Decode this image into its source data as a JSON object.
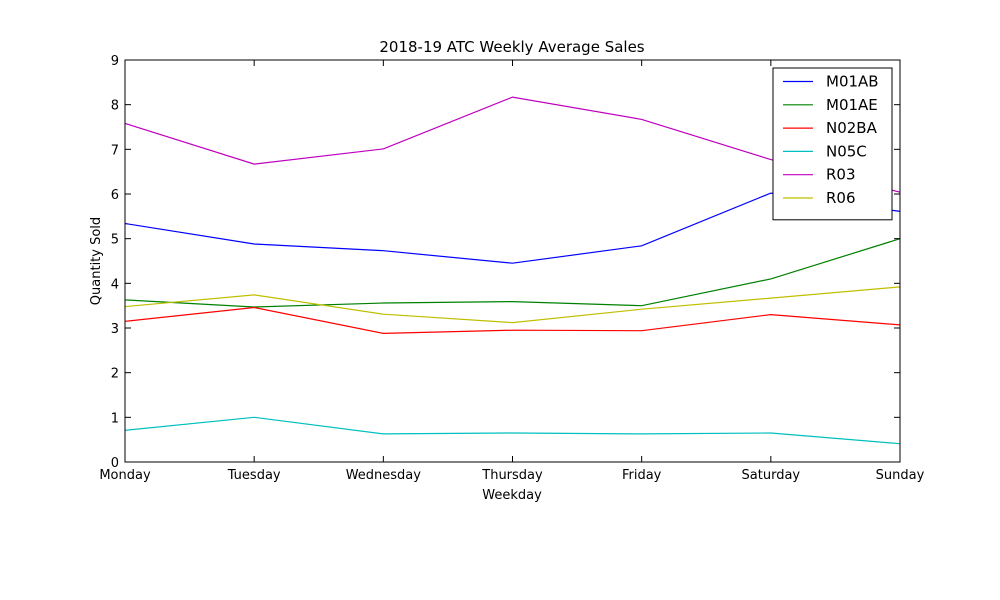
{
  "chart_data": {
    "type": "line",
    "title": "2018-19 ATC Weekly Average Sales",
    "xlabel": "Weekday",
    "ylabel": "Quantity Sold",
    "categories": [
      "Monday",
      "Tuesday",
      "Wednesday",
      "Thursday",
      "Friday",
      "Saturday",
      "Sunday"
    ],
    "ylim": [
      0,
      9
    ],
    "yticks": [
      "0",
      "1",
      "2",
      "3",
      "4",
      "5",
      "6",
      "7",
      "8",
      "9"
    ],
    "grid": false,
    "legend_position": "top-right",
    "series": [
      {
        "name": "M01AB",
        "color": "#0000ff",
        "values": [
          5.34,
          4.88,
          4.73,
          4.45,
          4.84,
          6.02,
          5.61
        ]
      },
      {
        "name": "M01AE",
        "color": "#008000",
        "values": [
          3.63,
          3.47,
          3.56,
          3.59,
          3.5,
          4.1,
          5.0
        ]
      },
      {
        "name": "N02BA",
        "color": "#ff0000",
        "values": [
          3.15,
          3.46,
          2.88,
          2.95,
          2.94,
          3.3,
          3.07
        ]
      },
      {
        "name": "N05C",
        "color": "#00bfbf",
        "values": [
          0.71,
          1.0,
          0.63,
          0.65,
          0.63,
          0.65,
          0.41
        ]
      },
      {
        "name": "R03",
        "color": "#bf00bf",
        "values": [
          7.58,
          6.67,
          7.01,
          8.17,
          7.67,
          6.77,
          6.04
        ]
      },
      {
        "name": "R06",
        "color": "#bfbf00",
        "values": [
          3.48,
          3.74,
          3.31,
          3.12,
          3.42,
          3.67,
          3.92
        ]
      }
    ]
  }
}
